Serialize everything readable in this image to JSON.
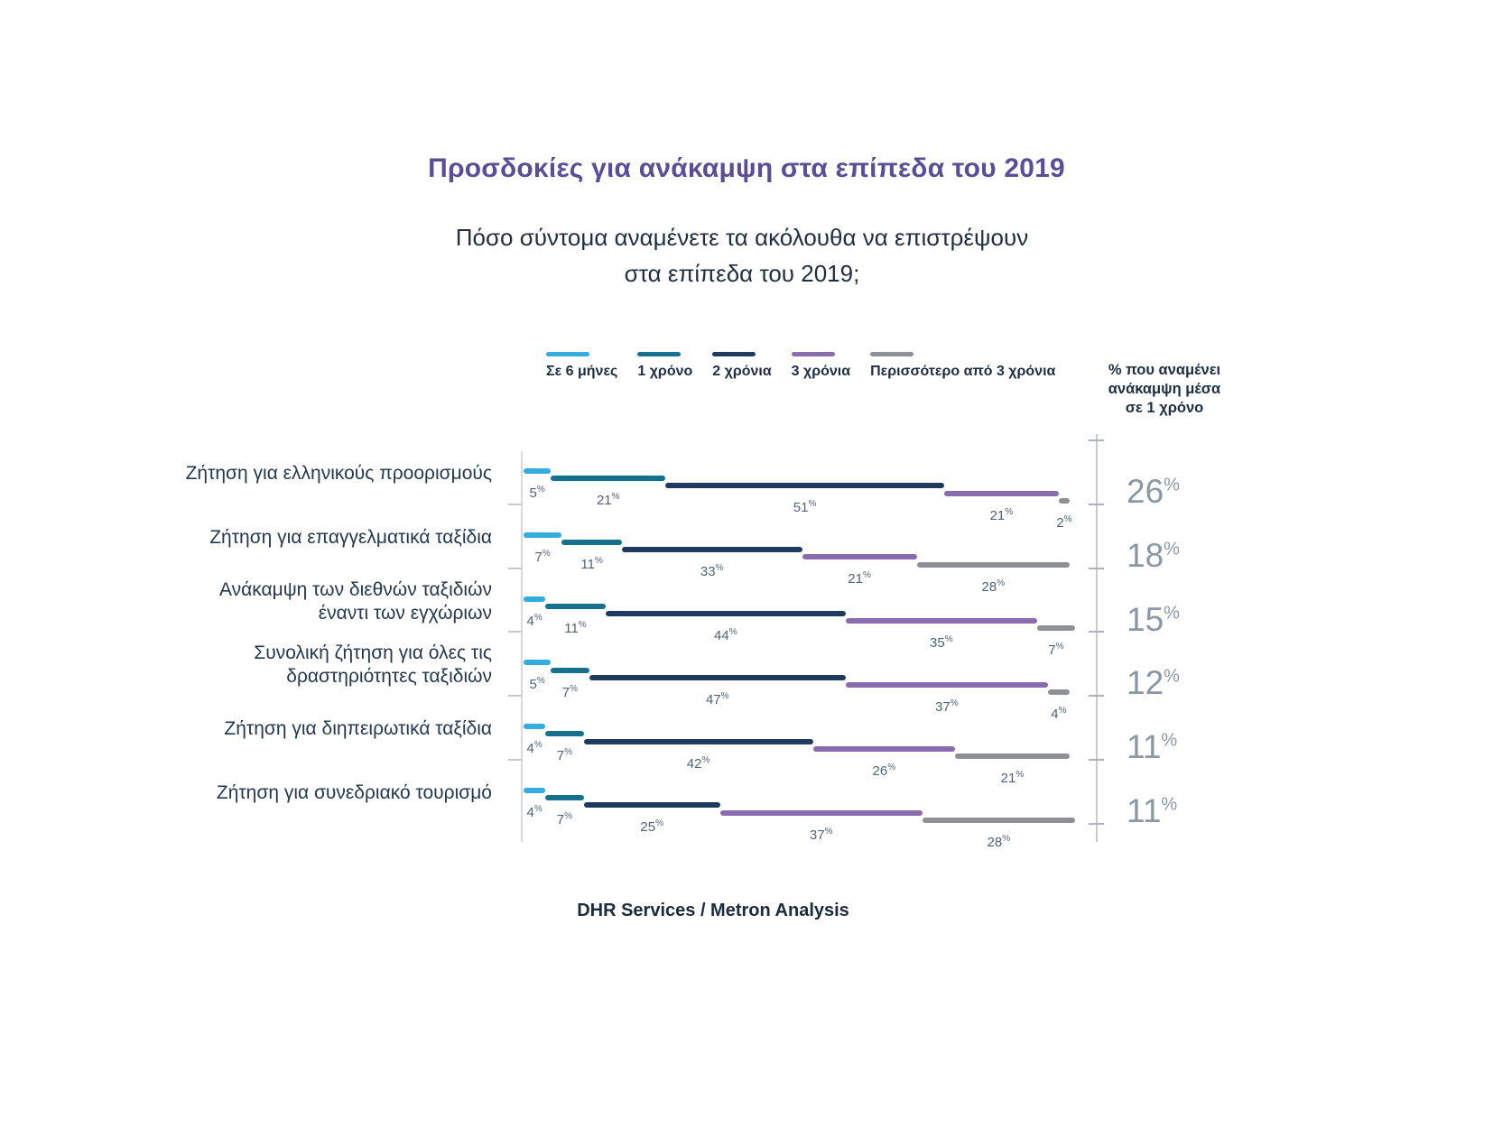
{
  "title": "Προσδοκίες για ανάκαμψη στα επίπεδα του 2019",
  "subtitle_lines": [
    "Πόσο σύντομα αναμένετε τα ακόλουθα να επιστρέψουν",
    "στα επίπεδα του 2019;"
  ],
  "right_header_lines": [
    "% που αναμένει",
    "ανάκαμψη μέσα",
    "σε 1 χρόνο"
  ],
  "source": "DHR Services / Metron Analysis",
  "theme": {
    "title_color": "#5B4E97",
    "text_dark": "#1E2F42",
    "value_label_color": "#4E6478",
    "big_value_color": "#8A98A6",
    "axis_color": "#D8DBDE"
  },
  "chart_data": {
    "type": "bar",
    "variant": "horizontal-stacked-stepped",
    "title": "Προσδοκίες για ανάκαμψη στα επίπεδα του 2019",
    "subtitle": "Πόσο σύντομα αναμένετε τα ακόλουθα να επιστρέψουν στα επίπεδα του 2019;",
    "unit": "%",
    "xlim": [
      0,
      100
    ],
    "legend_position": "top",
    "categories": [
      "Ζήτηση για ελληνικούς προορισμούς",
      "Ζήτηση για επαγγελματικά ταξίδια",
      "Ανάκαμψη των διεθνών ταξιδιών έναντι των εγχώριων",
      "Συνολική ζήτηση για όλες τις δραστηριότητες ταξιδιών",
      "Ζήτηση για διηπειρωτικά ταξίδια",
      "Ζήτηση για συνεδριακό τουρισμό"
    ],
    "category_lines": [
      [
        "Ζήτηση για ελληνικούς προορισμούς"
      ],
      [
        "Ζήτηση για επαγγελματικά ταξίδια"
      ],
      [
        "Ανάκαμψη των διεθνών ταξιδιών",
        "έναντι των εγχώριων"
      ],
      [
        "Συνολική ζήτηση για όλες τις",
        "δραστηριότητες ταξιδιών"
      ],
      [
        "Ζήτηση για διηπειρωτικά ταξίδια"
      ],
      [
        "Ζήτηση για συνεδριακό τουρισμό"
      ]
    ],
    "series": [
      {
        "name": "Σε 6 μήνες",
        "color": "#35ACDE",
        "values": [
          5,
          7,
          4,
          5,
          4,
          4
        ]
      },
      {
        "name": "1 χρόνο",
        "color": "#16718F",
        "values": [
          21,
          11,
          11,
          7,
          7,
          7
        ]
      },
      {
        "name": "2 χρόνια",
        "color": "#1F3A5F",
        "values": [
          51,
          33,
          44,
          47,
          42,
          25
        ]
      },
      {
        "name": "3 χρόνια",
        "color": "#8A6CAE",
        "values": [
          21,
          21,
          35,
          37,
          26,
          37
        ]
      },
      {
        "name": "Περισσότερο από 3 χρόνια",
        "color": "#8D9196",
        "values": [
          2,
          28,
          7,
          4,
          21,
          28
        ]
      }
    ],
    "right_column": {
      "header": "% που αναμένει ανάκαμψη μέσα σε 1 χρόνο",
      "values": [
        26,
        18,
        15,
        12,
        11,
        11
      ]
    }
  }
}
